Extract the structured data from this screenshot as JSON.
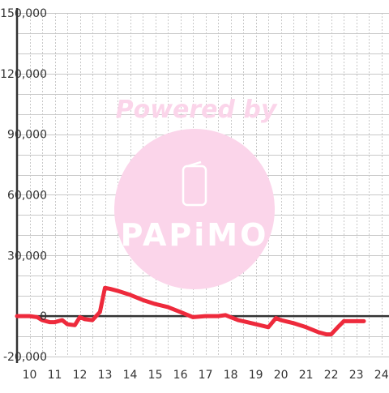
{
  "chart_data": {
    "type": "line",
    "title": "",
    "xlabel": "",
    "ylabel": "",
    "xlim": [
      9.5,
      24.3
    ],
    "ylim": [
      -20000,
      150000
    ],
    "x_ticks": [
      10,
      11,
      12,
      13,
      14,
      15,
      16,
      17,
      18,
      19,
      20,
      21,
      22,
      23,
      24
    ],
    "y_ticks": [
      -20000,
      0,
      30000,
      60000,
      90000,
      120000,
      150000
    ],
    "y_tick_labels": [
      "-20,000",
      "0",
      "30,000",
      "60,000",
      "90,000",
      "120,000",
      "150,000"
    ],
    "grid": true,
    "legend": "none",
    "series": [
      {
        "color": "#ee2a3c",
        "x": [
          9.5,
          10.0,
          10.3,
          10.5,
          10.8,
          11.0,
          11.3,
          11.5,
          11.8,
          12.0,
          12.2,
          12.5,
          12.8,
          13.0,
          13.2,
          13.5,
          14.0,
          14.5,
          15.0,
          15.5,
          16.0,
          16.5,
          17.0,
          17.5,
          17.8,
          18.0,
          18.3,
          18.5,
          19.0,
          19.5,
          19.8,
          20.0,
          20.5,
          21.0,
          21.3,
          21.5,
          21.8,
          22.0,
          22.3,
          22.5,
          23.0,
          23.3
        ],
        "y": [
          0,
          0,
          -500,
          -2000,
          -3000,
          -3000,
          -2000,
          -4000,
          -4500,
          -500,
          -1500,
          -2000,
          2000,
          14000,
          13500,
          12500,
          10500,
          8000,
          6000,
          4500,
          2000,
          -500,
          0,
          0,
          500,
          -500,
          -2000,
          -2500,
          -4000,
          -5500,
          -1000,
          -2000,
          -3500,
          -5500,
          -7000,
          -8000,
          -9000,
          -9000,
          -5000,
          -2500,
          -2500,
          -2500
        ]
      }
    ]
  },
  "watermark": {
    "text": "Powered by",
    "logo_text": "PAPiMO",
    "color": "#fbd5ea"
  },
  "colors": {
    "grid": "#c8c8c8",
    "zero_line": "#333333",
    "axis": "#333333",
    "tick_label": "#333333"
  }
}
